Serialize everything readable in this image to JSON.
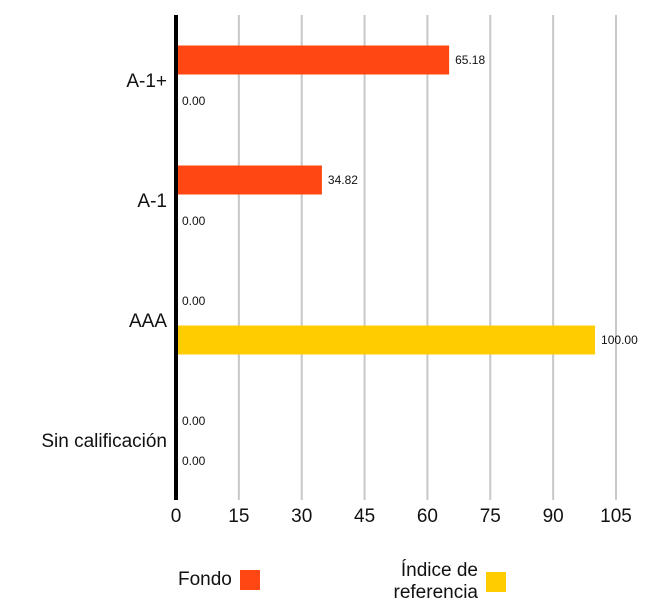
{
  "chart_data": {
    "type": "bar",
    "orientation": "horizontal",
    "categories": [
      "A-1+",
      "A-1",
      "AAA",
      "Sin calificación"
    ],
    "series": [
      {
        "name": "Fondo",
        "color": "#ff4713",
        "values": [
          65.18,
          34.82,
          0.0,
          0.0
        ],
        "labels": [
          "65.18",
          "34.82",
          "0.00",
          "0.00"
        ]
      },
      {
        "name": "Índice de referencia",
        "color": "#ffcc00",
        "values": [
          0.0,
          0.0,
          100.0,
          0.0
        ],
        "labels": [
          "0.00",
          "0.00",
          "100.00",
          "0.00"
        ]
      }
    ],
    "x_ticks": [
      0,
      15,
      30,
      45,
      60,
      75,
      90,
      105
    ],
    "xlim": [
      0,
      105
    ],
    "grid": true,
    "legend": "bottom",
    "title": "",
    "xlabel": "",
    "ylabel": ""
  },
  "legend": {
    "fondo_label": "Fondo",
    "indice_label": "Índice de referencia"
  }
}
